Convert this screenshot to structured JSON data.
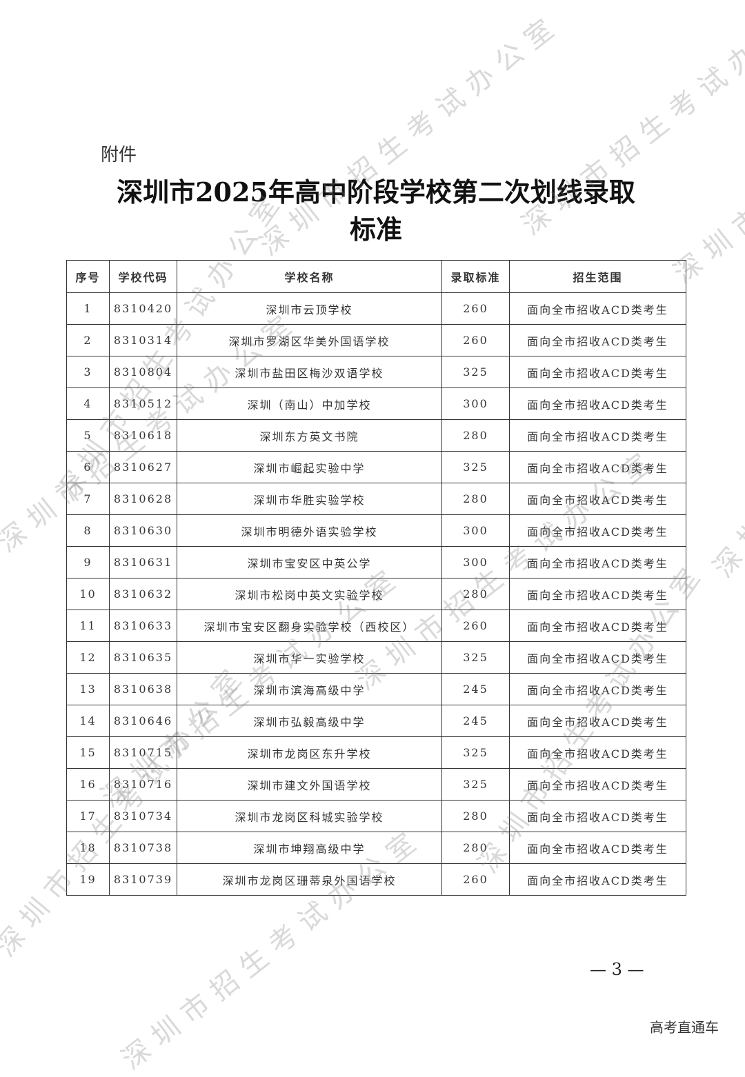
{
  "attachment_label": "附件",
  "title_line1": "深圳市2025年高中阶段学校第二次划线录取",
  "title_line2": "标准",
  "table": {
    "headers": [
      "序号",
      "学校代码",
      "学校名称",
      "录取标准",
      "招生范围"
    ],
    "rows": [
      [
        "1",
        "8310420",
        "深圳市云顶学校",
        "260",
        "面向全市招收ACD类考生"
      ],
      [
        "2",
        "8310314",
        "深圳市罗湖区华美外国语学校",
        "260",
        "面向全市招收ACD类考生"
      ],
      [
        "3",
        "8310804",
        "深圳市盐田区梅沙双语学校",
        "325",
        "面向全市招收ACD类考生"
      ],
      [
        "4",
        "8310512",
        "深圳（南山）中加学校",
        "300",
        "面向全市招收ACD类考生"
      ],
      [
        "5",
        "8310618",
        "深圳东方英文书院",
        "280",
        "面向全市招收ACD类考生"
      ],
      [
        "6",
        "8310627",
        "深圳市崛起实验中学",
        "325",
        "面向全市招收ACD类考生"
      ],
      [
        "7",
        "8310628",
        "深圳市华胜实验学校",
        "280",
        "面向全市招收ACD类考生"
      ],
      [
        "8",
        "8310630",
        "深圳市明德外语实验学校",
        "300",
        "面向全市招收ACD类考生"
      ],
      [
        "9",
        "8310631",
        "深圳市宝安区中英公学",
        "300",
        "面向全市招收ACD类考生"
      ],
      [
        "10",
        "8310632",
        "深圳市松岗中英文实验学校",
        "280",
        "面向全市招收ACD类考生"
      ],
      [
        "11",
        "8310633",
        "深圳市宝安区翻身实验学校（西校区）",
        "260",
        "面向全市招收ACD类考生"
      ],
      [
        "12",
        "8310635",
        "深圳市华一实验学校",
        "325",
        "面向全市招收ACD类考生"
      ],
      [
        "13",
        "8310638",
        "深圳市滨海高级中学",
        "245",
        "面向全市招收ACD类考生"
      ],
      [
        "14",
        "8310646",
        "深圳市弘毅高级中学",
        "245",
        "面向全市招收ACD类考生"
      ],
      [
        "15",
        "8310715",
        "深圳市龙岗区东升学校",
        "325",
        "面向全市招收ACD类考生"
      ],
      [
        "16",
        "8310716",
        "深圳市建文外国语学校",
        "325",
        "面向全市招收ACD类考生"
      ],
      [
        "17",
        "8310734",
        "深圳市龙岗区科城实验学校",
        "280",
        "面向全市招收ACD类考生"
      ],
      [
        "18",
        "8310738",
        "深圳市坤翔高级中学",
        "280",
        "面向全市招收ACD类考生"
      ],
      [
        "19",
        "8310739",
        "深圳市龙岗区珊蒂泉外国语学校",
        "260",
        "面向全市招收ACD类考生"
      ]
    ]
  },
  "page_number": "— 3 —",
  "source_label": "高考直通车",
  "watermark_text": "深圳市招生考试办公室"
}
